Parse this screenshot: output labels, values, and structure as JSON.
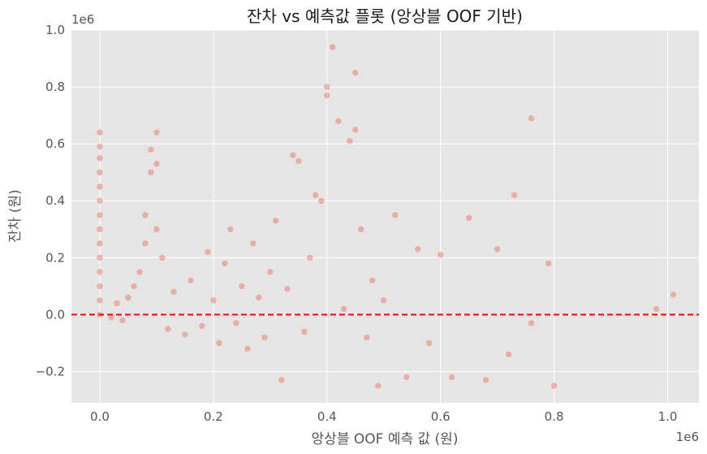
{
  "chart_data": {
    "type": "scatter",
    "title": "잔차 vs 예측값 플롯 (앙상블 OOF 기반)",
    "xlabel": "앙상블 OOF 예측 값 (원)",
    "ylabel": "잔차 (원)",
    "x_offset_label": "1e6",
    "y_offset_label": "1e6",
    "xlim": [
      -0.05,
      1.055
    ],
    "ylim": [
      -0.31,
      1.0
    ],
    "x_ticks": [
      {
        "value": 0.0,
        "label": "0.0"
      },
      {
        "value": 0.2,
        "label": "0.2"
      },
      {
        "value": 0.4,
        "label": "0.4"
      },
      {
        "value": 0.6,
        "label": "0.6"
      },
      {
        "value": 0.8,
        "label": "0.8"
      },
      {
        "value": 1.0,
        "label": "1.0"
      }
    ],
    "y_ticks": [
      {
        "value": -0.2,
        "label": "−0.2"
      },
      {
        "value": 0.0,
        "label": "0.0"
      },
      {
        "value": 0.2,
        "label": "0.2"
      },
      {
        "value": 0.4,
        "label": "0.4"
      },
      {
        "value": 0.6,
        "label": "0.6"
      },
      {
        "value": 0.8,
        "label": "0.8"
      },
      {
        "value": 1.0,
        "label": "1.0"
      }
    ],
    "grid": true,
    "reference_line": {
      "y": 0.0,
      "style": "dashed",
      "color": "#ff0000"
    },
    "series": [
      {
        "color": "#e24a33",
        "points": [
          [
            0.0,
            0.0
          ],
          [
            0.0,
            0.05
          ],
          [
            0.0,
            0.1
          ],
          [
            0.0,
            0.15
          ],
          [
            0.0,
            0.2
          ],
          [
            0.0,
            0.25
          ],
          [
            0.0,
            0.3
          ],
          [
            0.0,
            0.35
          ],
          [
            0.0,
            0.4
          ],
          [
            0.0,
            0.45
          ],
          [
            0.0,
            0.5
          ],
          [
            0.0,
            0.55
          ],
          [
            0.0,
            0.59
          ],
          [
            0.0,
            0.64
          ],
          [
            0.02,
            -0.01
          ],
          [
            0.03,
            0.04
          ],
          [
            0.04,
            -0.02
          ],
          [
            0.05,
            0.06
          ],
          [
            0.06,
            0.1
          ],
          [
            0.07,
            0.15
          ],
          [
            0.08,
            0.25
          ],
          [
            0.08,
            0.35
          ],
          [
            0.09,
            0.5
          ],
          [
            0.09,
            0.58
          ],
          [
            0.1,
            0.53
          ],
          [
            0.1,
            0.64
          ],
          [
            0.1,
            0.3
          ],
          [
            0.11,
            0.2
          ],
          [
            0.12,
            -0.05
          ],
          [
            0.13,
            0.08
          ],
          [
            0.15,
            -0.07
          ],
          [
            0.16,
            0.12
          ],
          [
            0.18,
            -0.04
          ],
          [
            0.19,
            0.22
          ],
          [
            0.2,
            0.05
          ],
          [
            0.21,
            -0.1
          ],
          [
            0.22,
            0.18
          ],
          [
            0.23,
            0.3
          ],
          [
            0.24,
            -0.03
          ],
          [
            0.25,
            0.1
          ],
          [
            0.26,
            -0.12
          ],
          [
            0.27,
            0.25
          ],
          [
            0.28,
            0.06
          ],
          [
            0.29,
            -0.08
          ],
          [
            0.3,
            0.15
          ],
          [
            0.31,
            0.33
          ],
          [
            0.32,
            -0.23
          ],
          [
            0.33,
            0.09
          ],
          [
            0.34,
            0.56
          ],
          [
            0.35,
            0.54
          ],
          [
            0.36,
            -0.06
          ],
          [
            0.37,
            0.2
          ],
          [
            0.38,
            0.42
          ],
          [
            0.39,
            0.4
          ],
          [
            0.4,
            0.8
          ],
          [
            0.4,
            0.77
          ],
          [
            0.41,
            0.94
          ],
          [
            0.42,
            0.68
          ],
          [
            0.43,
            0.02
          ],
          [
            0.44,
            0.61
          ],
          [
            0.45,
            0.85
          ],
          [
            0.45,
            0.65
          ],
          [
            0.46,
            0.3
          ],
          [
            0.47,
            -0.08
          ],
          [
            0.48,
            0.12
          ],
          [
            0.49,
            -0.25
          ],
          [
            0.5,
            0.05
          ],
          [
            0.52,
            0.35
          ],
          [
            0.54,
            -0.22
          ],
          [
            0.56,
            0.23
          ],
          [
            0.58,
            -0.1
          ],
          [
            0.6,
            0.21
          ],
          [
            0.62,
            -0.22
          ],
          [
            0.65,
            0.34
          ],
          [
            0.68,
            -0.23
          ],
          [
            0.7,
            0.23
          ],
          [
            0.72,
            -0.14
          ],
          [
            0.73,
            0.42
          ],
          [
            0.76,
            0.69
          ],
          [
            0.76,
            -0.03
          ],
          [
            0.79,
            0.18
          ],
          [
            0.8,
            -0.25
          ],
          [
            0.98,
            0.02
          ],
          [
            1.01,
            0.07
          ]
        ]
      }
    ]
  }
}
